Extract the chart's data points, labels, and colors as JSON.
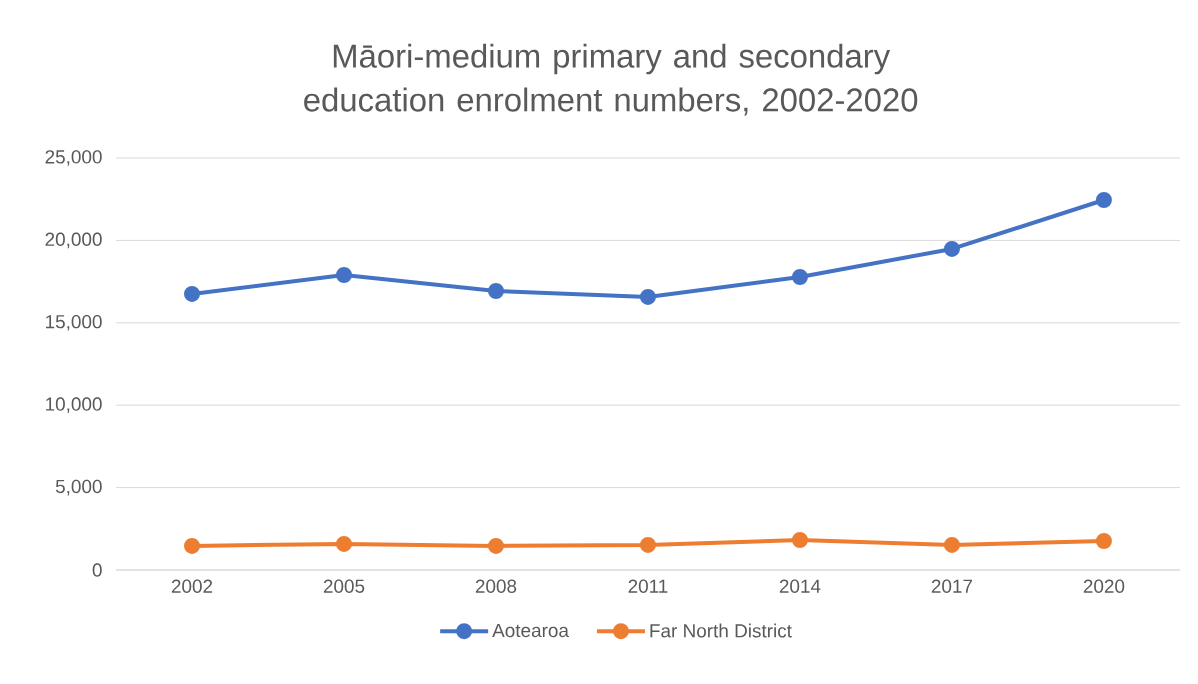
{
  "chart_data": {
    "type": "line",
    "title": "Māori-medium primary and secondary education enrolment numbers, 2002-2020",
    "categories": [
      "2002",
      "2005",
      "2008",
      "2011",
      "2014",
      "2017",
      "2020"
    ],
    "series": [
      {
        "name": "Aotearoa",
        "color": "#4472c4",
        "values": [
          16750,
          17900,
          16930,
          16570,
          17780,
          19480,
          22450
        ]
      },
      {
        "name": "Far North District",
        "color": "#ed7d31",
        "values": [
          1460,
          1580,
          1460,
          1520,
          1820,
          1520,
          1760
        ]
      }
    ],
    "ylim": [
      0,
      25000
    ],
    "yticks": [
      {
        "value": 0,
        "label": "0"
      },
      {
        "value": 5000,
        "label": "5,000"
      },
      {
        "value": 10000,
        "label": "10,000"
      },
      {
        "value": 15000,
        "label": "15,000"
      },
      {
        "value": 20000,
        "label": "20,000"
      },
      {
        "value": 25000,
        "label": "25,000"
      }
    ],
    "grid": "y",
    "legend": "bottom",
    "marker": "circle",
    "line_style": "solid"
  }
}
